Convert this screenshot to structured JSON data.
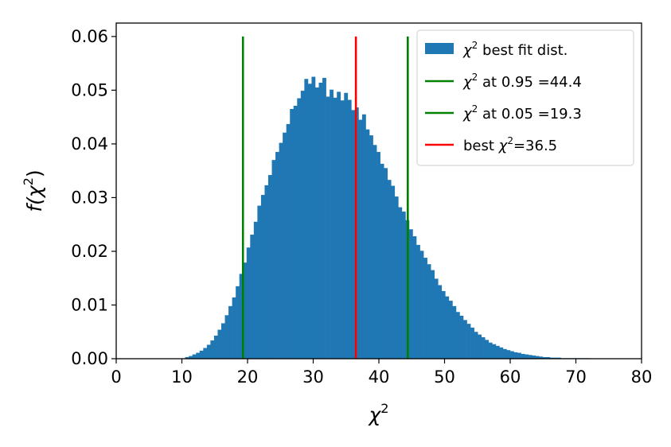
{
  "chart_data": {
    "type": "bar",
    "xlabel_base": "χ",
    "xlabel_sup": "2",
    "ylabel_prefix": "f(χ",
    "ylabel_sup": "2",
    "ylabel_suffix": ")",
    "xlim": [
      0,
      80
    ],
    "ylim": [
      0,
      0.0625
    ],
    "xticks": [
      0,
      10,
      20,
      30,
      40,
      50,
      60,
      70,
      80
    ],
    "yticks": [
      0.0,
      0.01,
      0.02,
      0.03,
      0.04,
      0.05,
      0.06
    ],
    "xtick_labels": [
      "0",
      "10",
      "20",
      "30",
      "40",
      "50",
      "60",
      "70",
      "80"
    ],
    "ytick_labels": [
      "0.00",
      "0.01",
      "0.02",
      "0.03",
      "0.04",
      "0.05",
      "0.06"
    ],
    "grid": false,
    "legend_position": "top-right",
    "histogram": {
      "bin_start": 10.5,
      "bin_width": 0.55,
      "values": [
        0.0003,
        0.0005,
        0.0008,
        0.0011,
        0.0015,
        0.002,
        0.0026,
        0.0034,
        0.0043,
        0.0054,
        0.0066,
        0.0081,
        0.0098,
        0.0114,
        0.0135,
        0.0158,
        0.0179,
        0.0207,
        0.0231,
        0.0255,
        0.0285,
        0.0305,
        0.0323,
        0.0342,
        0.037,
        0.0385,
        0.0402,
        0.0421,
        0.0437,
        0.0465,
        0.0471,
        0.0485,
        0.0499,
        0.0521,
        0.0512,
        0.0525,
        0.0505,
        0.0514,
        0.0523,
        0.0488,
        0.0501,
        0.0486,
        0.0497,
        0.0481,
        0.0495,
        0.0482,
        0.0463,
        0.0468,
        0.0445,
        0.0455,
        0.0427,
        0.0416,
        0.0398,
        0.0385,
        0.0363,
        0.0355,
        0.0333,
        0.0322,
        0.0302,
        0.0282,
        0.0274,
        0.0258,
        0.0241,
        0.0228,
        0.0212,
        0.0201,
        0.0188,
        0.0176,
        0.0165,
        0.0149,
        0.0137,
        0.0126,
        0.0116,
        0.0108,
        0.0098,
        0.0087,
        0.008,
        0.0072,
        0.0065,
        0.0058,
        0.005,
        0.0045,
        0.004,
        0.0035,
        0.003,
        0.0027,
        0.0024,
        0.0021,
        0.0018,
        0.0016,
        0.0014,
        0.0012,
        0.0011,
        0.0009,
        0.0008,
        0.0007,
        0.0006,
        0.0005,
        0.0004,
        0.0003,
        0.0003,
        0.0002,
        0.0002,
        0.0002,
        0.0001,
        0.0001,
        0.0001,
        0.0001,
        0.0001,
        0.0001,
        0.0001,
        0.0001,
        5e-05,
        5e-05,
        5e-05,
        5e-05,
        5e-05,
        5e-05,
        5e-05,
        5e-05,
        5e-05,
        5e-05,
        5e-05,
        5e-05,
        5e-05,
        5e-05
      ],
      "color": "#1f77b4"
    },
    "vlines": [
      {
        "x": 19.3,
        "color": "#008000",
        "y_top": 0.06
      },
      {
        "x": 44.4,
        "color": "#008000",
        "y_top": 0.06
      },
      {
        "x": 36.5,
        "color": "#ff0000",
        "y_top": 0.06
      }
    ],
    "legend": [
      {
        "kind": "patch",
        "color": "#1f77b4",
        "sym": "χ",
        "sup": "2",
        "text": " best fit dist."
      },
      {
        "kind": "line",
        "color": "#008000",
        "sym": "χ",
        "sup": "2",
        "text": " at 0.95 =44.4"
      },
      {
        "kind": "line",
        "color": "#008000",
        "sym": "χ",
        "sup": "2",
        "text": " at 0.05 =19.3"
      },
      {
        "kind": "line",
        "color": "#ff0000",
        "prefix": "best ",
        "sym": "χ",
        "sup": "2",
        "text": "=36.5"
      }
    ]
  }
}
